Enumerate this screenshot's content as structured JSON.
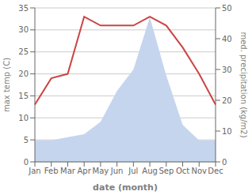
{
  "chart_data": {
    "type": "line",
    "categories": [
      "Jan",
      "Feb",
      "Mar",
      "Apr",
      "May",
      "Jun",
      "Jul",
      "Aug",
      "Sep",
      "Oct",
      "Nov",
      "Dec"
    ],
    "x_label": "date (month)",
    "y_label": "max temp (C)",
    "y2_label": "med. precipitation (kg/m2)",
    "ylim": [
      0,
      35
    ],
    "yticks": [
      0,
      5,
      10,
      15,
      20,
      25,
      30,
      35
    ],
    "y2lim": [
      0,
      50
    ],
    "y2ticks": [
      0,
      10,
      20,
      30,
      40,
      50
    ],
    "grid": true,
    "series": [
      {
        "type": "area",
        "axis": "y2",
        "color": "#c5d5ee",
        "values": [
          7,
          7,
          8,
          9,
          13,
          23,
          30,
          47,
          28,
          12,
          7,
          7
        ]
      },
      {
        "type": "line",
        "color": "#cc4444",
        "values": [
          13,
          19,
          20,
          33,
          31,
          31,
          31,
          33,
          31,
          26,
          20,
          13
        ]
      }
    ]
  }
}
